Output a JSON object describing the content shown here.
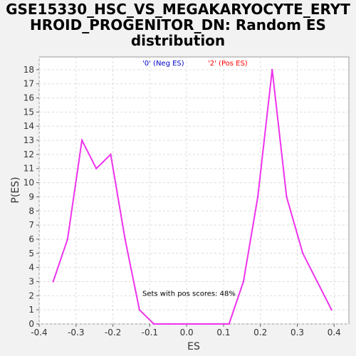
{
  "chart_data": {
    "type": "line",
    "title_lines": [
      "GSE15330_HSC_VS_MEGAKARYOCYTE_ERYT",
      "HROID_PROGENITOR_DN: Random ES",
      "distribution"
    ],
    "xlabel": "ES",
    "ylabel": "P(ES)",
    "xlim": [
      -0.4,
      0.44
    ],
    "ylim": [
      0,
      18.9
    ],
    "x_ticks": [
      -0.4,
      -0.3,
      -0.2,
      -0.1,
      0.0,
      0.1,
      0.2,
      0.3,
      0.4
    ],
    "x_tick_labels": [
      "-0.4",
      "-0.3",
      "-0.2",
      "-0.1",
      "0.0",
      "0.1",
      "0.2",
      "0.3",
      "0.4"
    ],
    "y_ticks": [
      0,
      1,
      2,
      3,
      4,
      5,
      6,
      7,
      8,
      9,
      10,
      11,
      12,
      13,
      14,
      15,
      16,
      17,
      18
    ],
    "y_tick_labels": [
      "0",
      "1",
      "2",
      "3",
      "4",
      "5",
      "6",
      "7",
      "8",
      "9",
      "10",
      "11",
      "12",
      "13",
      "14",
      "15",
      "16",
      "17",
      "18"
    ],
    "grid": true,
    "legend_position": "top",
    "series": [
      {
        "name": "'0' (Neg ES)",
        "color": "#0000cc",
        "x": [],
        "y": []
      },
      {
        "name": "'2' (Pos ES)",
        "color": "#ff0000",
        "line_color": "#ee33ee",
        "x": [
          -0.362,
          -0.323,
          -0.284,
          -0.245,
          -0.206,
          -0.167,
          -0.128,
          -0.089,
          -0.05,
          -0.011,
          0.028,
          0.067,
          0.115,
          0.154,
          0.193,
          0.232,
          0.271,
          0.315,
          0.354,
          0.393
        ],
        "y": [
          3,
          6,
          13,
          11,
          12,
          6,
          1,
          0,
          0,
          0,
          0,
          0,
          0,
          3,
          9,
          18,
          9,
          5,
          3,
          1
        ]
      }
    ],
    "annotation": "Sets with pos scores: 48%",
    "annotation_pos": {
      "x": -0.12,
      "y": 2
    }
  }
}
